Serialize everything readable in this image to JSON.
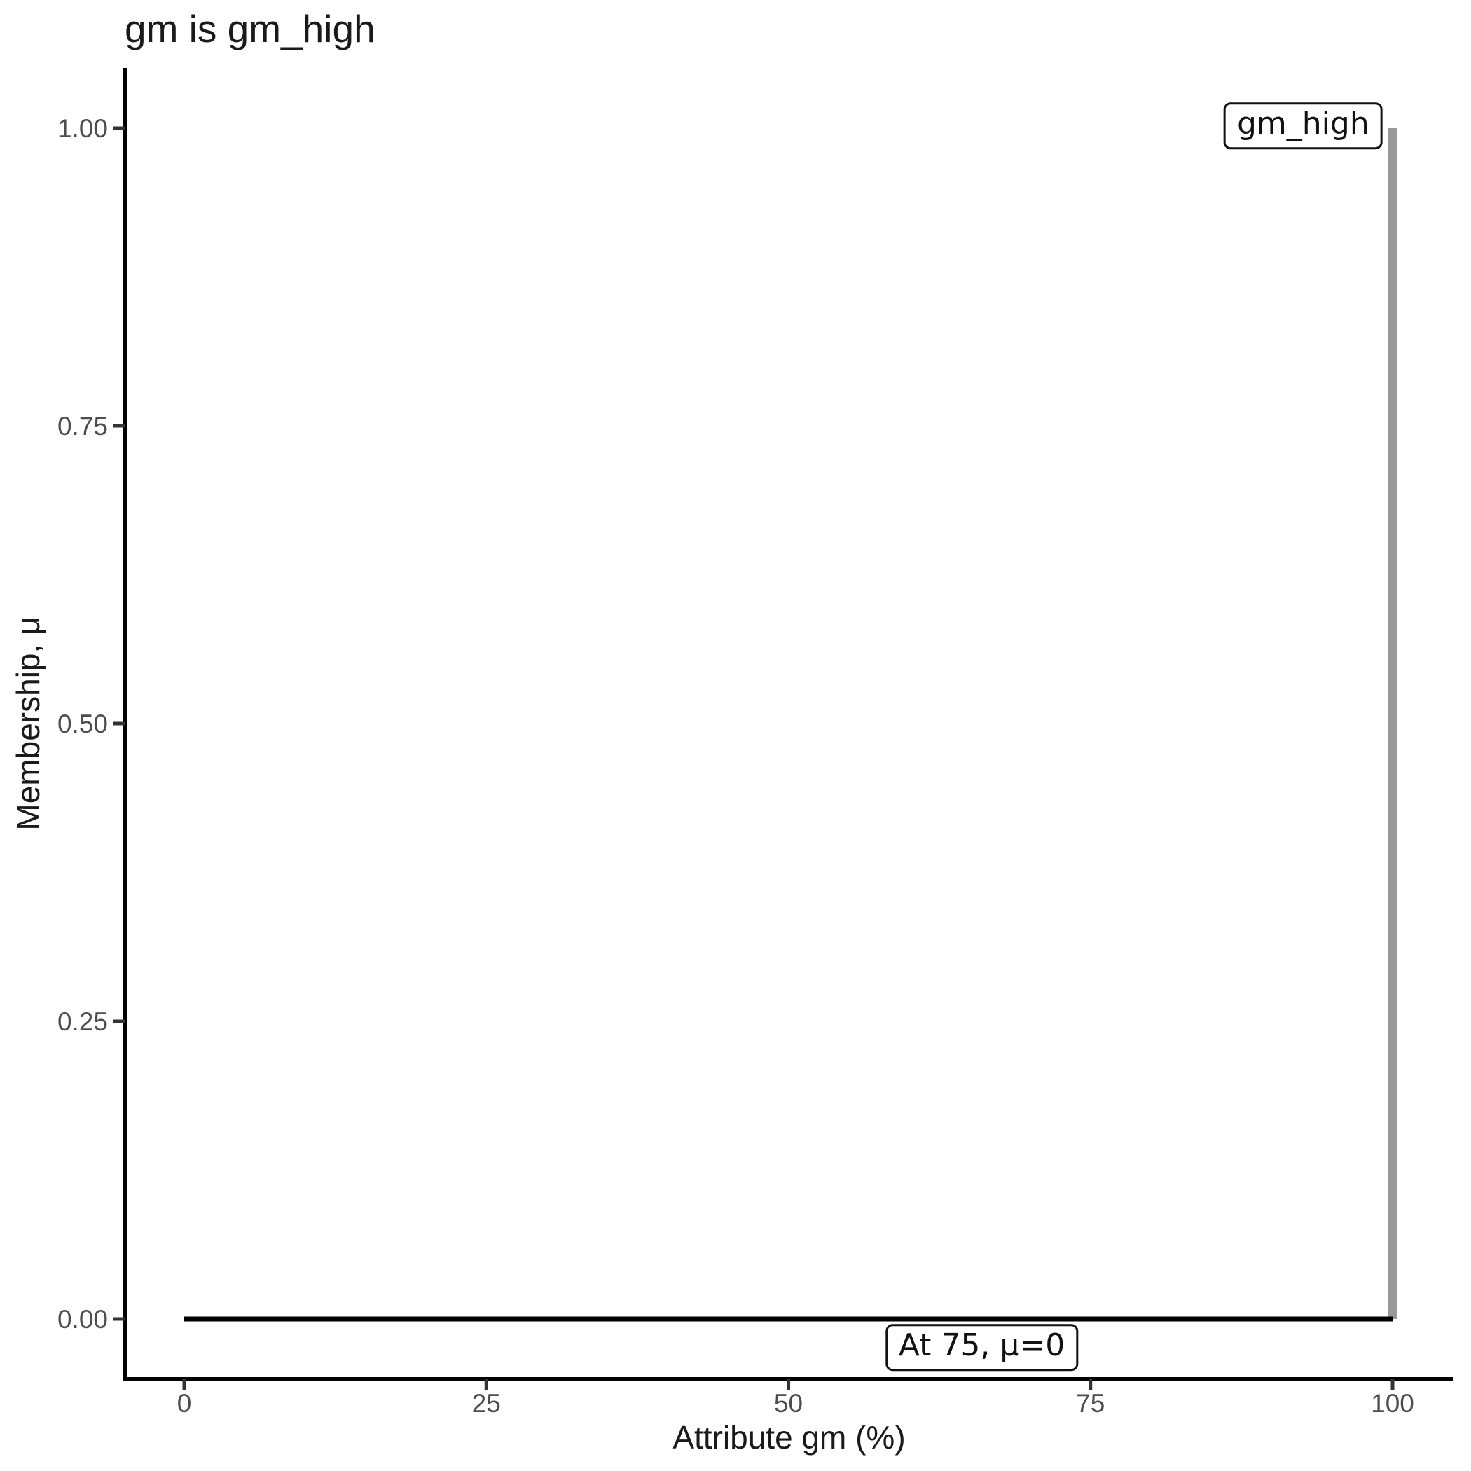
{
  "chart_data": {
    "type": "line",
    "title": "gm is gm_high",
    "xlabel": "Attribute gm (%)",
    "ylabel": "Membership, μ",
    "xlim": [
      0,
      100
    ],
    "ylim": [
      0,
      1
    ],
    "grid": false,
    "legend_position": "none",
    "x_ticks": [
      {
        "value": 0,
        "label": "0"
      },
      {
        "value": 25,
        "label": "25"
      },
      {
        "value": 50,
        "label": "50"
      },
      {
        "value": 75,
        "label": "75"
      },
      {
        "value": 100,
        "label": "100"
      }
    ],
    "y_ticks": [
      {
        "value": 0,
        "label": "0.00"
      },
      {
        "value": 0.25,
        "label": "0.25"
      },
      {
        "value": 0.5,
        "label": "0.50"
      },
      {
        "value": 0.75,
        "label": "0.75"
      },
      {
        "value": 1,
        "label": "1.00"
      }
    ],
    "series": [
      {
        "name": "gm-high-membership",
        "color": "#999999",
        "stroke_width": 13,
        "points": [
          [
            100,
            0
          ],
          [
            100,
            1
          ]
        ]
      },
      {
        "name": "membership-at-zero-baseline",
        "color": "#000000",
        "stroke_width": 7,
        "points": [
          [
            0,
            0
          ],
          [
            100,
            0
          ]
        ]
      }
    ],
    "annotations": [
      {
        "name": "gm-high-label",
        "text": "gm_high",
        "x": 92.6,
        "y": 1.002
      },
      {
        "name": "at-75-label",
        "text": "At 75, μ=0",
        "x": 66.0,
        "y": -0.024
      }
    ],
    "colors": {
      "axis_line": "#000000",
      "tick_mark": "#333333",
      "tick_label": "#4d4d4d",
      "text": "#1a1a1a",
      "annotation_border": "#111111",
      "annotation_bg": "#ffffff"
    }
  }
}
